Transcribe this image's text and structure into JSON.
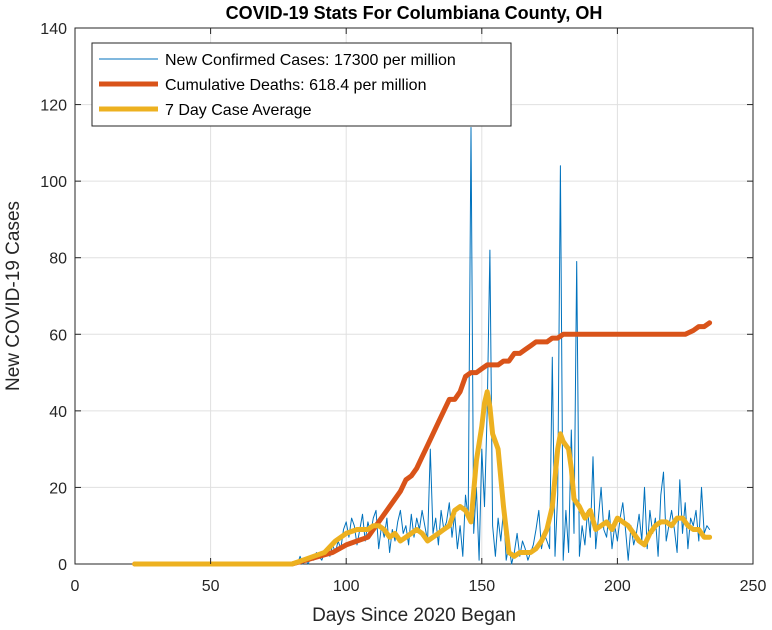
{
  "chart_data": {
    "type": "line",
    "title": "COVID-19 Stats For Columbiana County, OH",
    "xlabel": "Days Since 2020 Began",
    "ylabel": "New COVID-19 Cases",
    "xlim": [
      0,
      250
    ],
    "ylim": [
      0,
      140
    ],
    "xticks": [
      0,
      50,
      100,
      150,
      200,
      250
    ],
    "yticks": [
      0,
      20,
      40,
      60,
      80,
      100,
      120,
      140
    ],
    "grid": true,
    "legend_position": "top-left",
    "series": [
      {
        "name": "New Confirmed Cases: 17300 per million",
        "color": "#0072BD",
        "width": 1,
        "x": [
          22,
          30,
          40,
          50,
          60,
          70,
          80,
          82,
          83,
          84,
          85,
          86,
          87,
          88,
          89,
          90,
          91,
          92,
          93,
          94,
          95,
          96,
          97,
          98,
          99,
          100,
          101,
          102,
          103,
          104,
          105,
          106,
          107,
          108,
          109,
          110,
          111,
          112,
          113,
          114,
          115,
          116,
          117,
          118,
          119,
          120,
          121,
          122,
          123,
          124,
          125,
          126,
          127,
          128,
          129,
          130,
          131,
          132,
          133,
          134,
          135,
          136,
          137,
          138,
          139,
          140,
          141,
          142,
          143,
          144,
          145,
          146,
          147,
          148,
          149,
          150,
          151,
          152,
          153,
          154,
          155,
          156,
          157,
          158,
          159,
          160,
          161,
          162,
          163,
          164,
          165,
          166,
          167,
          168,
          169,
          170,
          171,
          172,
          173,
          174,
          175,
          176,
          177,
          178,
          179,
          180,
          181,
          182,
          183,
          184,
          185,
          186,
          187,
          188,
          189,
          190,
          191,
          192,
          193,
          194,
          195,
          196,
          197,
          198,
          199,
          200,
          201,
          202,
          203,
          204,
          205,
          206,
          207,
          208,
          209,
          210,
          211,
          212,
          213,
          214,
          215,
          216,
          217,
          218,
          219,
          220,
          221,
          222,
          223,
          224,
          225,
          226,
          227,
          228,
          229,
          230,
          231,
          232,
          233,
          234
        ],
        "y": [
          0,
          0,
          0,
          0,
          0,
          0,
          0,
          0,
          2,
          0,
          1,
          0,
          2,
          1,
          3,
          2,
          1,
          3,
          4,
          2,
          5,
          3,
          6,
          4,
          9,
          11,
          7,
          12,
          10,
          5,
          9,
          13,
          6,
          11,
          8,
          12,
          14,
          4,
          10,
          7,
          12,
          3,
          9,
          6,
          11,
          14,
          8,
          10,
          5,
          13,
          7,
          12,
          9,
          14,
          10,
          6,
          30,
          8,
          12,
          5,
          14,
          9,
          11,
          16,
          7,
          13,
          4,
          10,
          2,
          18,
          12,
          114,
          8,
          20,
          1,
          30,
          15,
          40,
          82,
          10,
          2,
          12,
          6,
          14,
          1,
          5,
          0,
          3,
          8,
          2,
          6,
          4,
          1,
          3,
          5,
          9,
          14,
          4,
          8,
          6,
          4,
          54,
          2,
          18,
          104,
          1,
          14,
          3,
          35,
          8,
          79,
          2,
          10,
          5,
          14,
          7,
          28,
          4,
          12,
          20,
          9,
          7,
          14,
          4,
          10,
          6,
          12,
          16,
          9,
          1,
          10,
          5,
          8,
          13,
          6,
          20,
          4,
          14,
          8,
          12,
          2,
          18,
          24,
          6,
          10,
          14,
          9,
          3,
          22,
          8,
          16,
          4,
          12,
          10,
          14,
          6,
          20,
          8,
          10,
          9
        ]
      },
      {
        "name": "Cumulative Deaths: 618.4 per million",
        "color": "#D95319",
        "width": 5,
        "x": [
          22,
          80,
          85,
          90,
          95,
          100,
          104,
          108,
          110,
          112,
          114,
          116,
          118,
          120,
          122,
          124,
          126,
          128,
          130,
          132,
          134,
          136,
          138,
          140,
          142,
          144,
          146,
          148,
          150,
          152,
          154,
          156,
          158,
          160,
          162,
          164,
          166,
          168,
          170,
          172,
          174,
          176,
          178,
          180,
          190,
          200,
          210,
          220,
          225,
          228,
          230,
          232,
          234
        ],
        "y": [
          0,
          0,
          1,
          2,
          3,
          5,
          6,
          7,
          9,
          11,
          13,
          15,
          17,
          19,
          22,
          23,
          25,
          28,
          31,
          34,
          37,
          40,
          43,
          43,
          45,
          49,
          50,
          50,
          51,
          52,
          52,
          52,
          53,
          53,
          55,
          55,
          56,
          57,
          58,
          58,
          58,
          59,
          59,
          60,
          60,
          60,
          60,
          60,
          60,
          61,
          62,
          62,
          63
        ]
      },
      {
        "name": "7 Day Case Average",
        "color": "#EDB120",
        "width": 5,
        "x": [
          22,
          30,
          40,
          50,
          60,
          70,
          80,
          84,
          88,
          92,
          96,
          100,
          104,
          108,
          110,
          112,
          114,
          116,
          118,
          120,
          122,
          124,
          126,
          128,
          130,
          132,
          134,
          136,
          138,
          140,
          142,
          144,
          146,
          148,
          150,
          151,
          152,
          153,
          154,
          156,
          158,
          160,
          162,
          164,
          166,
          168,
          170,
          172,
          174,
          176,
          178,
          179,
          180,
          181,
          182,
          183,
          184,
          186,
          188,
          190,
          192,
          194,
          196,
          198,
          200,
          202,
          204,
          206,
          208,
          210,
          212,
          214,
          216,
          218,
          220,
          222,
          224,
          226,
          228,
          230,
          232,
          234
        ],
        "y": [
          0,
          0,
          0,
          0,
          0,
          0,
          0,
          1,
          2,
          3,
          6,
          8,
          9,
          9,
          10,
          10,
          9,
          7,
          8,
          6,
          7,
          8,
          9,
          8,
          6,
          7,
          8,
          9,
          10,
          14,
          15,
          14,
          11,
          27,
          36,
          42,
          45,
          41,
          34,
          30,
          15,
          3,
          2,
          3,
          3,
          3,
          4,
          6,
          9,
          15,
          30,
          34,
          32,
          31,
          30,
          25,
          17,
          15,
          12,
          14,
          9,
          10,
          11,
          9,
          12,
          11,
          10,
          8,
          6,
          5,
          8,
          10,
          11,
          11,
          10,
          12,
          12,
          10,
          9,
          9,
          7,
          7
        ]
      }
    ]
  }
}
